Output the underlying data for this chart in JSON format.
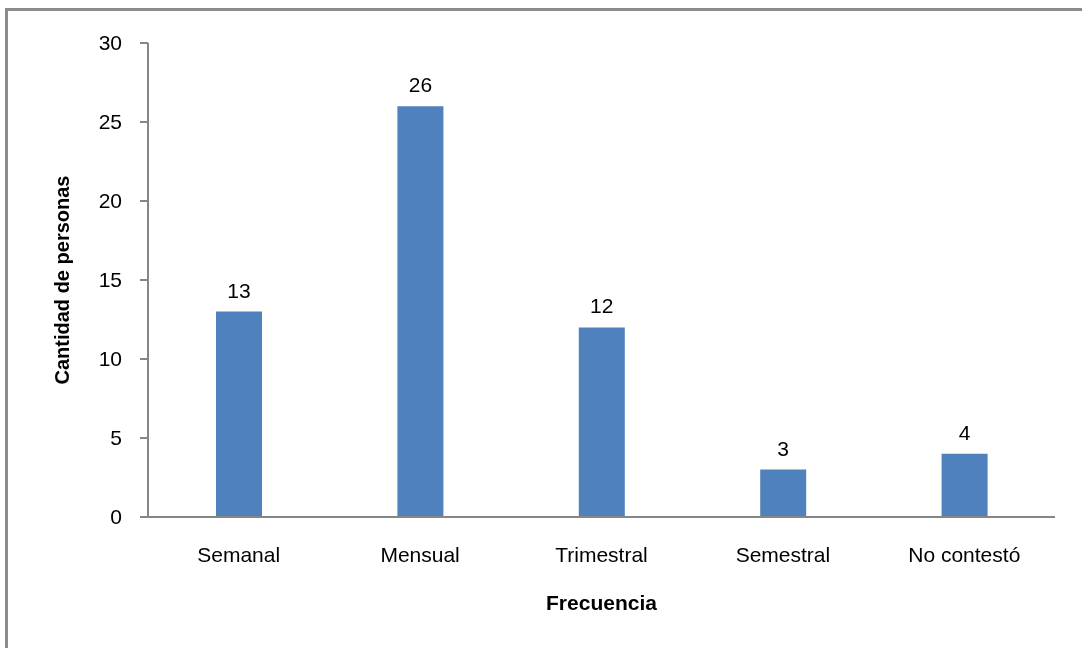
{
  "chart_data": {
    "type": "bar",
    "xlabel": "Frecuencia",
    "ylabel": "Cantidad de personas",
    "categories": [
      "Semanal",
      "Mensual",
      "Trimestral",
      "Semestral",
      "No contestó"
    ],
    "values": [
      13,
      26,
      12,
      3,
      4
    ],
    "color": "#4f81bd",
    "ylim": [
      0,
      30
    ],
    "yticks": [
      0,
      5,
      10,
      15,
      20,
      25,
      30
    ],
    "data_labels": true
  }
}
